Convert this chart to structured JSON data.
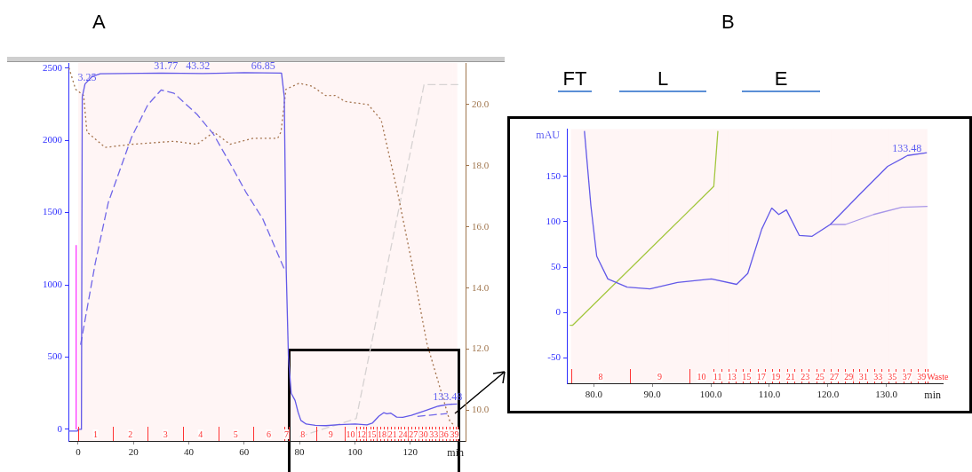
{
  "chart_data": [
    {
      "type": "line",
      "title": "A",
      "xlabel": "min",
      "marker": "none",
      "xlim": [
        -3.5,
        140
      ],
      "xticks": [
        0,
        20,
        40,
        60,
        80,
        100,
        120
      ],
      "ylim": [
        -80,
        2535
      ],
      "yticks": [
        0,
        500,
        1000,
        1500,
        2000,
        2500
      ],
      "y2lim": [
        9.0,
        21.36
      ],
      "y2ticks": [
        {
          "value": 10,
          "label": "10.0"
        },
        {
          "value": 12,
          "label": "12.0"
        },
        {
          "value": 14,
          "label": "14.0"
        },
        {
          "value": 16,
          "label": "16.0"
        },
        {
          "value": 18,
          "label": "18.0"
        },
        {
          "value": 20,
          "label": "20.0"
        }
      ],
      "series": [
        {
          "color": "#5b5bf2",
          "line_style": "solid",
          "x": [
            -3.3,
            -0.3,
            0,
            1.2,
            1.5,
            2.5,
            5,
            8,
            30,
            45,
            60,
            73.5,
            74.5,
            75.2,
            76,
            77,
            78.4,
            79.5,
            80.5,
            82.4,
            85.7,
            89.6,
            94.3,
            100.1,
            104.4,
            106.3,
            108.7,
            110.4,
            111.6,
            112.9,
            115.1,
            117.3,
            120.4,
            125.4,
            130.2,
            133.6,
            136.9
          ],
          "values": [
            -12,
            -12,
            0,
            0,
            2300,
            2390,
            2440,
            2460,
            2465,
            2462,
            2468,
            2465,
            2300,
            1100,
            500,
            250,
            200,
            118,
            62,
            37,
            28,
            26,
            33,
            37,
            31,
            43,
            92,
            115,
            108,
            113,
            85,
            84,
            97,
            130,
            161,
            173,
            176
          ]
        },
        {
          "color": "#6a6af2",
          "line_style": "dashed",
          "x": [
            0.9,
            6.2,
            10.9,
            19.3,
            25.2,
            30,
            34.7,
            43,
            48.9,
            54.9,
            60.8,
            66.7,
            74.5,
            75,
            122.6,
            133.4
          ],
          "values": [
            585,
            1150,
            1569,
            2020,
            2246,
            2348,
            2325,
            2179,
            2043,
            1841,
            1636,
            1457,
            1110,
            null,
            90,
            110
          ]
        },
        {
          "color": "#a0764e",
          "line_style": "dotted",
          "axis": "y2",
          "x": [
            -3.3,
            -0.9,
            2,
            3.2,
            9.8,
            19.3,
            34.7,
            43,
            49,
            54.9,
            63.2,
            72.1,
            73.3,
            75.1,
            79.9,
            84.6,
            89.3,
            92.9,
            96.5,
            104.8,
            109.5,
            115.5,
            120.2,
            126,
            134.3,
            136
          ],
          "values": [
            21.2,
            20.5,
            20.3,
            19.1,
            18.6,
            18.7,
            18.8,
            18.7,
            19.1,
            18.7,
            18.9,
            18.9,
            19.1,
            20.5,
            20.7,
            20.6,
            20.3,
            20.3,
            20.1,
            20.0,
            19.5,
            17.1,
            15.0,
            12.2,
            9.65,
            9.5
          ]
        },
        {
          "color": "#d5dbdb",
          "line_style": "dashed",
          "x": [
            80,
            100.5,
            125,
            137.4
          ],
          "values": [
            -50,
            75,
            2385,
            2385
          ]
        },
        {
          "color": "#ff33ff",
          "line_style": "solid",
          "x": [
            -0.7,
            -0.7
          ],
          "values": [
            0,
            1275
          ]
        }
      ],
      "annotations": [
        {
          "text": "3.25",
          "x": 3.25,
          "y": 2390
        },
        {
          "text": "31.77",
          "x": 31.77,
          "y": 2470
        },
        {
          "text": "43.32",
          "x": 43.32,
          "y": 2470
        },
        {
          "text": "66.85",
          "x": 66.85,
          "y": 2470
        },
        {
          "text": "133.48",
          "x": 133.48,
          "y": 176
        }
      ],
      "bands": [
        {
          "axis": "x",
          "from": 0,
          "to": 12.6,
          "label": "1",
          "color": "#ff3333"
        },
        {
          "axis": "x",
          "from": 12.6,
          "to": 25.2,
          "label": "2",
          "color": "#ff3333"
        },
        {
          "axis": "x",
          "from": 25.2,
          "to": 37.9,
          "label": "3",
          "color": "#ff3333"
        },
        {
          "axis": "x",
          "from": 37.9,
          "to": 50.6,
          "label": "4",
          "color": "#ff3333"
        },
        {
          "axis": "x",
          "from": 50.6,
          "to": 63.3,
          "label": "5",
          "color": "#ff3333"
        },
        {
          "axis": "x",
          "from": 63.3,
          "to": 74.5,
          "label": "6",
          "color": "#ff3333"
        },
        {
          "axis": "x",
          "from": 74.5,
          "to": 76.1,
          "label": "7",
          "color": "#ff3333"
        },
        {
          "axis": "x",
          "from": 76.1,
          "to": 86.2,
          "label": "8",
          "color": "#ff3333"
        },
        {
          "axis": "x",
          "from": 86.2,
          "to": 96.3,
          "label": "9",
          "color": "#ff3333"
        },
        {
          "axis": "x",
          "from": 96.3,
          "to": 100.5,
          "label": "10",
          "color": "#ff3333"
        },
        {
          "axis": "x",
          "from": 100.5,
          "to": 101.8,
          "color": "#ff3333"
        },
        {
          "axis": "x",
          "from": 101.8,
          "to": 103.0,
          "label": "12",
          "color": "#ff3333"
        },
        {
          "axis": "x",
          "from": 103.0,
          "to": 104.2,
          "color": "#ff3333"
        },
        {
          "axis": "x",
          "from": 104.2,
          "to": 105.5,
          "color": "#ff3333"
        },
        {
          "axis": "x",
          "from": 105.5,
          "to": 106.7,
          "label": "15",
          "color": "#ff3333"
        },
        {
          "axis": "x",
          "from": 106.7,
          "to": 108.0,
          "color": "#ff3333"
        },
        {
          "axis": "x",
          "from": 108.0,
          "to": 109.2,
          "color": "#ff3333"
        },
        {
          "axis": "x",
          "from": 109.2,
          "to": 110.5,
          "label": "18",
          "color": "#ff3333"
        },
        {
          "axis": "x",
          "from": 110.5,
          "to": 111.7,
          "color": "#ff3333"
        },
        {
          "axis": "x",
          "from": 111.7,
          "to": 113.0,
          "color": "#ff3333"
        },
        {
          "axis": "x",
          "from": 113.0,
          "to": 114.2,
          "label": "21",
          "color": "#ff3333"
        },
        {
          "axis": "x",
          "from": 114.2,
          "to": 115.5,
          "color": "#ff3333"
        },
        {
          "axis": "x",
          "from": 115.5,
          "to": 116.7,
          "color": "#ff3333"
        },
        {
          "axis": "x",
          "from": 116.7,
          "to": 118.0,
          "label": "24",
          "color": "#ff3333"
        },
        {
          "axis": "x",
          "from": 118.0,
          "to": 119.2,
          "color": "#ff3333"
        },
        {
          "axis": "x",
          "from": 119.2,
          "to": 120.5,
          "color": "#ff3333"
        },
        {
          "axis": "x",
          "from": 120.5,
          "to": 121.7,
          "label": "27",
          "color": "#ff3333"
        },
        {
          "axis": "x",
          "from": 121.7,
          "to": 122.9,
          "color": "#ff3333"
        },
        {
          "axis": "x",
          "from": 122.9,
          "to": 124.2,
          "color": "#ff3333"
        },
        {
          "axis": "x",
          "from": 124.2,
          "to": 125.4,
          "label": "30",
          "color": "#ff3333"
        },
        {
          "axis": "x",
          "from": 125.4,
          "to": 126.7,
          "color": "#ff3333"
        },
        {
          "axis": "x",
          "from": 126.7,
          "to": 127.9,
          "color": "#ff3333"
        },
        {
          "axis": "x",
          "from": 127.9,
          "to": 129.2,
          "label": "33",
          "color": "#ff3333"
        },
        {
          "axis": "x",
          "from": 129.2,
          "to": 130.4,
          "color": "#ff3333"
        },
        {
          "axis": "x",
          "from": 130.4,
          "to": 131.6,
          "color": "#ff3333"
        },
        {
          "axis": "x",
          "from": 131.6,
          "to": 132.9,
          "label": "36",
          "color": "#ff3333"
        },
        {
          "axis": "x",
          "from": 132.9,
          "to": 134.1,
          "color": "#ff3333"
        },
        {
          "axis": "x",
          "from": 134.1,
          "to": 135.4,
          "color": "#ff3333"
        },
        {
          "axis": "x",
          "from": 135.4,
          "to": 136.6,
          "label": "39",
          "color": "#ff3333"
        },
        {
          "axis": "x",
          "from": 136.6,
          "to": 137.0,
          "color": "#ff3333"
        }
      ]
    },
    {
      "type": "line",
      "title": "B",
      "xlabel": "min",
      "ylabel": "mAU",
      "marker": "none",
      "xlim": [
        75.4,
        139.6
      ],
      "xticks": [
        {
          "value": 80,
          "label": "80.0"
        },
        {
          "value": 90,
          "label": "90.0"
        },
        {
          "value": 100,
          "label": "100.0"
        },
        {
          "value": 110,
          "label": "110.0"
        },
        {
          "value": 120,
          "label": "120.0"
        },
        {
          "value": 130,
          "label": "130.0"
        }
      ],
      "ylim": [
        -78,
        202
      ],
      "yticks": [
        -50,
        0,
        50,
        100,
        150
      ],
      "series": [
        {
          "color": "#5b5bf2",
          "line_style": "solid",
          "x": [
            78.4,
            79.5,
            80.5,
            82.4,
            85.7,
            89.6,
            94.3,
            100.1,
            104.4,
            106.3,
            108.7,
            110.4,
            111.6,
            112.9,
            115.1,
            117.3,
            120.4,
            125.4,
            130.2,
            133.6,
            136.9
          ],
          "values": [
            200,
            118,
            62,
            37,
            28,
            26,
            33,
            37,
            31,
            43,
            92,
            115,
            108,
            113,
            85,
            84,
            97,
            130,
            161,
            173,
            176
          ]
        },
        {
          "color": "#a49cf2",
          "line_style": "solid",
          "x": [
            120.4,
            123,
            127.8,
            132.6,
            137
          ],
          "values": [
            97,
            97,
            108,
            116,
            117
          ]
        },
        {
          "color": "#9fcf3f",
          "line_style": "solid",
          "x": [
            75.9,
            76.4,
            100.5,
            101.2
          ],
          "values": [
            -14,
            -14,
            139,
            200
          ]
        }
      ],
      "annotations": [
        "FT",
        "L",
        "E",
        {
          "text": "133.48",
          "x": 133.48,
          "y": 173
        }
      ],
      "bands": [
        {
          "axis": "x",
          "from": 76.1,
          "to": 86.2,
          "label": "8",
          "color": "#ff3333"
        },
        {
          "axis": "x",
          "from": 86.2,
          "to": 96.3,
          "label": "9",
          "color": "#ff3333"
        },
        {
          "axis": "x",
          "from": 96.3,
          "to": 100.5,
          "label": "10",
          "color": "#ff3333"
        },
        {
          "axis": "x",
          "from": 100.5,
          "to": 101.8,
          "label": "11",
          "color": "#ff3333"
        },
        {
          "axis": "x",
          "from": 101.8,
          "to": 103.0,
          "color": "#ff3333"
        },
        {
          "axis": "x",
          "from": 103.0,
          "to": 104.2,
          "label": "13",
          "color": "#ff3333"
        },
        {
          "axis": "x",
          "from": 104.2,
          "to": 105.5,
          "color": "#ff3333"
        },
        {
          "axis": "x",
          "from": 105.5,
          "to": 106.7,
          "label": "15",
          "color": "#ff3333"
        },
        {
          "axis": "x",
          "from": 106.7,
          "to": 108.0,
          "color": "#ff3333"
        },
        {
          "axis": "x",
          "from": 108.0,
          "to": 109.2,
          "label": "17",
          "color": "#ff3333"
        },
        {
          "axis": "x",
          "from": 109.2,
          "to": 110.5,
          "color": "#ff3333"
        },
        {
          "axis": "x",
          "from": 110.5,
          "to": 111.7,
          "label": "19",
          "color": "#ff3333"
        },
        {
          "axis": "x",
          "from": 111.7,
          "to": 113.0,
          "color": "#ff3333"
        },
        {
          "axis": "x",
          "from": 113.0,
          "to": 114.2,
          "label": "21",
          "color": "#ff3333"
        },
        {
          "axis": "x",
          "from": 114.2,
          "to": 115.5,
          "color": "#ff3333"
        },
        {
          "axis": "x",
          "from": 115.5,
          "to": 116.7,
          "label": "23",
          "color": "#ff3333"
        },
        {
          "axis": "x",
          "from": 116.7,
          "to": 118.0,
          "color": "#ff3333"
        },
        {
          "axis": "x",
          "from": 118.0,
          "to": 119.2,
          "label": "25",
          "color": "#ff3333"
        },
        {
          "axis": "x",
          "from": 119.2,
          "to": 120.5,
          "color": "#ff3333"
        },
        {
          "axis": "x",
          "from": 120.5,
          "to": 121.7,
          "label": "27",
          "color": "#ff3333"
        },
        {
          "axis": "x",
          "from": 121.7,
          "to": 122.9,
          "color": "#ff3333"
        },
        {
          "axis": "x",
          "from": 122.9,
          "to": 124.2,
          "label": "29",
          "color": "#ff3333"
        },
        {
          "axis": "x",
          "from": 124.2,
          "to": 125.4,
          "color": "#ff3333"
        },
        {
          "axis": "x",
          "from": 125.4,
          "to": 126.7,
          "label": "31",
          "color": "#ff3333"
        },
        {
          "axis": "x",
          "from": 126.7,
          "to": 127.9,
          "color": "#ff3333"
        },
        {
          "axis": "x",
          "from": 127.9,
          "to": 129.2,
          "label": "33",
          "color": "#ff3333"
        },
        {
          "axis": "x",
          "from": 129.2,
          "to": 130.4,
          "color": "#ff3333"
        },
        {
          "axis": "x",
          "from": 130.4,
          "to": 131.6,
          "label": "35",
          "color": "#ff3333"
        },
        {
          "axis": "x",
          "from": 131.6,
          "to": 132.9,
          "color": "#ff3333"
        },
        {
          "axis": "x",
          "from": 132.9,
          "to": 134.1,
          "label": "37",
          "color": "#ff3333"
        },
        {
          "axis": "x",
          "from": 134.1,
          "to": 135.4,
          "color": "#ff3333"
        },
        {
          "axis": "x",
          "from": 135.4,
          "to": 136.6,
          "label": "39",
          "color": "#ff3333"
        },
        {
          "axis": "x",
          "from": 136.6,
          "to": 137.0,
          "label": "Waste",
          "color": "#ff3333"
        }
      ]
    }
  ]
}
